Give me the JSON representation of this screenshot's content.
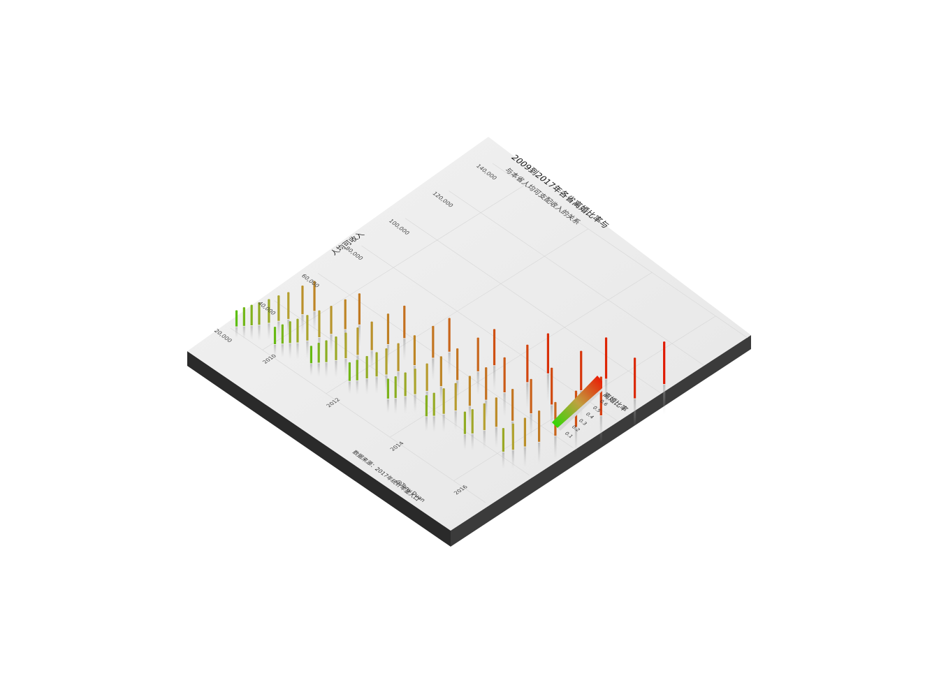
{
  "chart_data": {
    "type": "bar",
    "title": "2009到2017年各省离婚比率与",
    "subtitle": "与本省人均可支配收入的关系",
    "xlabel": "",
    "ylabel": "人均可收入",
    "caption": "数据来源：2017年统计年鉴人口",
    "credit": "@Tony.Duan",
    "x_ticks": [
      "2010",
      "2012",
      "2014",
      "2016"
    ],
    "y_ticks": [
      "20,000",
      "40,000",
      "60,000",
      "80,000",
      "100,000",
      "120,000",
      "140,000"
    ],
    "xlim": [
      2009,
      2017
    ],
    "ylim": [
      20000,
      140000
    ],
    "legend": {
      "title": "离婚比率",
      "ticks": [
        "0.1",
        "0.2",
        "0.3",
        "0.4",
        "0.5",
        "0.6"
      ],
      "range": [
        0.1,
        0.6
      ],
      "placement": "bottom-right"
    },
    "colors": {
      "low": "#33cc00",
      "mid": "#b5a030",
      "high": "#e01a00"
    },
    "series": [
      {
        "x": [
          2009.05,
          2009.15,
          2009.25,
          2009.35,
          2009.45,
          2009.55,
          2009.65,
          2009.75,
          2009.85
        ],
        "y": [
          22000,
          24000,
          26000,
          28000,
          31000,
          34000,
          37000,
          42000,
          46000
        ],
        "ratio": [
          0.18,
          0.22,
          0.25,
          0.28,
          0.3,
          0.33,
          0.35,
          0.38,
          0.4
        ]
      },
      {
        "x": [
          2010.05,
          2010.15,
          2010.25,
          2010.35,
          2010.45,
          2010.55,
          2010.65,
          2010.75,
          2010.85
        ],
        "y": [
          25000,
          27000,
          29000,
          31000,
          34000,
          38000,
          42000,
          47000,
          52000
        ],
        "ratio": [
          0.2,
          0.23,
          0.27,
          0.3,
          0.33,
          0.35,
          0.37,
          0.4,
          0.42
        ]
      },
      {
        "x": [
          2011.05,
          2011.15,
          2011.25,
          2011.35,
          2011.45,
          2011.55,
          2011.65,
          2011.75,
          2011.85
        ],
        "y": [
          27000,
          29000,
          31000,
          34000,
          37000,
          41000,
          46000,
          52000,
          58000
        ],
        "ratio": [
          0.2,
          0.24,
          0.27,
          0.3,
          0.33,
          0.36,
          0.38,
          0.41,
          0.44
        ]
      },
      {
        "x": [
          2012.05,
          2012.15,
          2012.25,
          2012.35,
          2012.45,
          2012.55,
          2012.65,
          2012.75,
          2012.85
        ],
        "y": [
          30000,
          32000,
          35000,
          38000,
          41000,
          45000,
          51000,
          58000,
          64000
        ],
        "ratio": [
          0.22,
          0.25,
          0.28,
          0.31,
          0.34,
          0.37,
          0.4,
          0.43,
          0.46
        ]
      },
      {
        "x": [
          2013.05,
          2013.15,
          2013.25,
          2013.35,
          2013.45,
          2013.55,
          2013.65,
          2013.75,
          2013.85
        ],
        "y": [
          33000,
          35000,
          38000,
          41000,
          45000,
          50000,
          56000,
          64000,
          70000
        ],
        "ratio": [
          0.24,
          0.27,
          0.3,
          0.33,
          0.36,
          0.4,
          0.43,
          0.46,
          0.5
        ]
      },
      {
        "x": [
          2014.05,
          2014.15,
          2014.25,
          2014.35,
          2014.45,
          2014.55,
          2014.65,
          2014.75,
          2014.85
        ],
        "y": [
          36000,
          38000,
          41000,
          45000,
          50000,
          56000,
          63000,
          72000,
          80000
        ],
        "ratio": [
          0.26,
          0.29,
          0.33,
          0.36,
          0.4,
          0.44,
          0.48,
          0.52,
          0.56
        ]
      },
      {
        "x": [
          2015.05,
          2015.15,
          2015.25,
          2015.35,
          2015.45,
          2015.55,
          2015.65,
          2015.75,
          2015.85
        ],
        "y": [
          39000,
          41000,
          45000,
          49000,
          55000,
          62000,
          70000,
          82000,
          92000
        ],
        "ratio": [
          0.28,
          0.31,
          0.35,
          0.39,
          0.43,
          0.47,
          0.51,
          0.55,
          0.58
        ]
      },
      {
        "x": [
          2016.05,
          2016.15,
          2016.25,
          2016.35,
          2016.45,
          2016.55,
          2016.65,
          2016.75,
          2016.85
        ],
        "y": [
          42000,
          45000,
          49000,
          54000,
          60000,
          68000,
          78000,
          92000,
          104000
        ],
        "ratio": [
          0.3,
          0.34,
          0.38,
          0.42,
          0.46,
          0.5,
          0.54,
          0.57,
          0.6
        ]
      }
    ]
  }
}
